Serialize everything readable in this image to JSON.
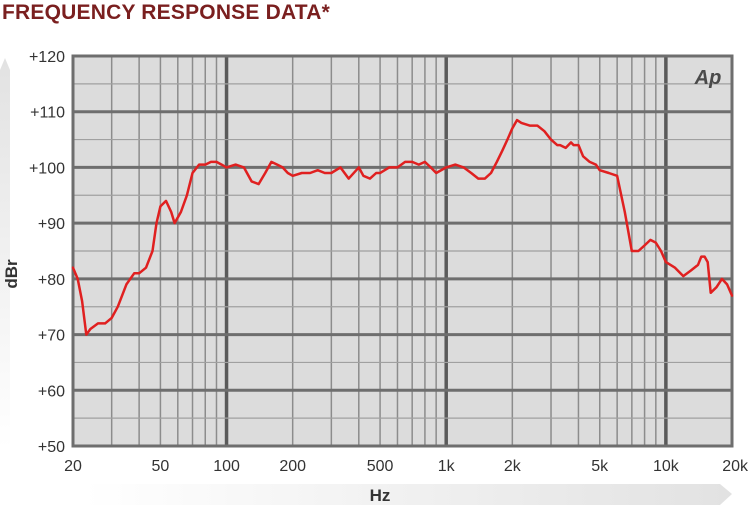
{
  "title": "FREQUENCY RESPONSE DATA*",
  "logo_text": "Ap",
  "colors": {
    "title": "#7a1f1f",
    "curve": "#e02020",
    "plot_background": "#dcdcdc",
    "grid": "#8c8c8c",
    "axis_band": "#e6e6e6",
    "axis_label": "#333333"
  },
  "chart_data": {
    "type": "line",
    "xscale": "log",
    "xlabel": "Hz",
    "ylabel": "dBr",
    "xlim": [
      20,
      20000
    ],
    "ylim": [
      50,
      120
    ],
    "grid": true,
    "x_ticks": [
      {
        "value": 20,
        "label": "20"
      },
      {
        "value": 50,
        "label": "50"
      },
      {
        "value": 100,
        "label": "100"
      },
      {
        "value": 200,
        "label": "200"
      },
      {
        "value": 500,
        "label": "500"
      },
      {
        "value": 1000,
        "label": "1k"
      },
      {
        "value": 2000,
        "label": "2k"
      },
      {
        "value": 5000,
        "label": "5k"
      },
      {
        "value": 10000,
        "label": "10k"
      },
      {
        "value": 20000,
        "label": "20k"
      }
    ],
    "y_ticks": [
      {
        "value": 50,
        "label": "+50"
      },
      {
        "value": 60,
        "label": "+60"
      },
      {
        "value": 70,
        "label": "+70"
      },
      {
        "value": 80,
        "label": "+80"
      },
      {
        "value": 90,
        "label": "+90"
      },
      {
        "value": 100,
        "label": "+100"
      },
      {
        "value": 110,
        "label": "+110"
      },
      {
        "value": 120,
        "label": "+120"
      }
    ],
    "series": [
      {
        "x": [
          20,
          21,
          22,
          23,
          24,
          26,
          28,
          30,
          32,
          35,
          38,
          40,
          43,
          46,
          48,
          50,
          53,
          56,
          58,
          62,
          66,
          70,
          75,
          80,
          85,
          90,
          95,
          100,
          110,
          120,
          130,
          140,
          150,
          160,
          170,
          180,
          190,
          200,
          220,
          240,
          260,
          280,
          300,
          330,
          360,
          400,
          420,
          450,
          480,
          500,
          550,
          600,
          650,
          700,
          750,
          800,
          850,
          900,
          1000,
          1100,
          1200,
          1300,
          1400,
          1500,
          1600,
          1700,
          1800,
          1900,
          2000,
          2100,
          2200,
          2400,
          2600,
          2800,
          3000,
          3200,
          3300,
          3500,
          3700,
          3800,
          4000,
          4200,
          4500,
          4800,
          5000,
          5500,
          6000,
          6500,
          7000,
          7500,
          8000,
          8500,
          9000,
          9500,
          10000,
          11000,
          12000,
          13000,
          14000,
          14500,
          15000,
          15500,
          16000,
          17000,
          18000,
          19000,
          20000
        ],
        "y": [
          82,
          80,
          76,
          70,
          71,
          72,
          72,
          73,
          75,
          79,
          81,
          81,
          82,
          85,
          90,
          93,
          94,
          92,
          90,
          92,
          95,
          99,
          100.5,
          100.5,
          101,
          101,
          100.5,
          100,
          100.5,
          100,
          97.5,
          97,
          99,
          101,
          100.5,
          100,
          99,
          98.5,
          99,
          99,
          99.5,
          99,
          99,
          100,
          98,
          100,
          98.5,
          98,
          99,
          99,
          100,
          100,
          101,
          101,
          100.5,
          101,
          100,
          99,
          100,
          100.5,
          100,
          99,
          98,
          98,
          99,
          101,
          103,
          105,
          107,
          108.5,
          108,
          107.5,
          107.5,
          106.5,
          105,
          104,
          104,
          103.5,
          104.5,
          104,
          104,
          102,
          101,
          100.5,
          99.5,
          99,
          98.5,
          92,
          85,
          85,
          86,
          87,
          86.5,
          85,
          83,
          82,
          80.5,
          81.5,
          82.5,
          84,
          84,
          83,
          77.5,
          78.5,
          80,
          79,
          77
        ]
      }
    ]
  }
}
